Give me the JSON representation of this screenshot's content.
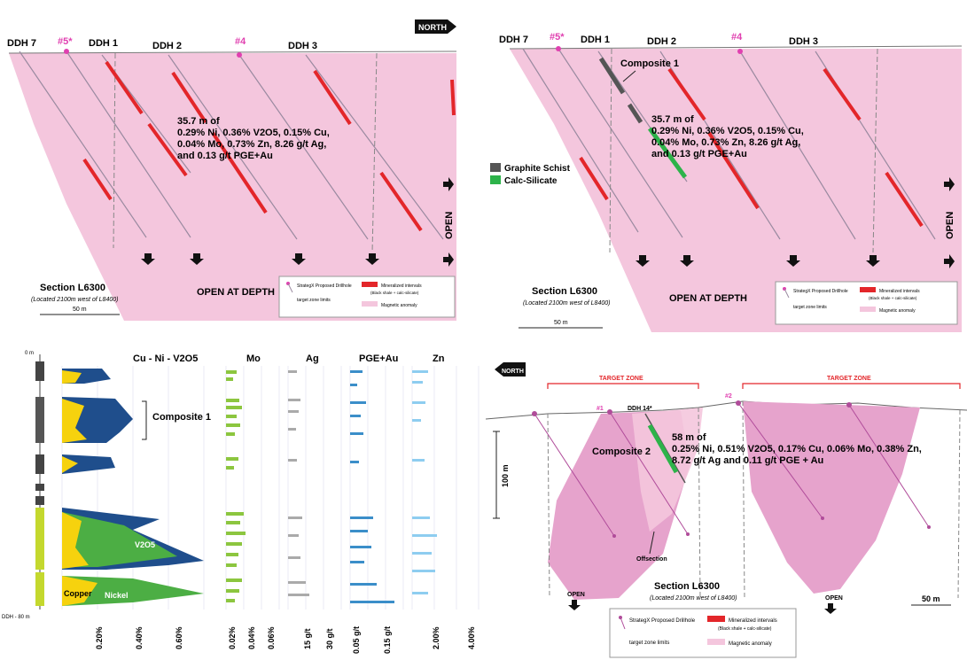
{
  "colors": {
    "pink": "#f4c6dd",
    "pink_strong": "#e6a3cc",
    "magenta": "#e040b0",
    "red": "#e3262a",
    "graphite": "#555555",
    "calc": "#2db34a",
    "yellow": "#f6d20e",
    "blue": "#1f4e8c",
    "green": "#4cae44",
    "mo_green": "#8cc63f",
    "ag_grey": "#aaaaaa",
    "pge_blue": "#3b8ec9",
    "zn_lightblue": "#8ecdf0"
  },
  "north_label": "NORTH",
  "top_left": {
    "holes": [
      "DDH 7",
      "#5*",
      "DDH 1",
      "DDH 2",
      "#4",
      "DDH 3"
    ],
    "intercept": [
      "35.7 m of",
      "0.29% Ni, 0.36% V2O5, 0.15% Cu,",
      "0.04% Mo, 0.73% Zn, 8.26 g/t Ag,",
      "and 0.13 g/t PGE+Au"
    ],
    "open_label": "OPEN",
    "open_at_depth": "OPEN AT DEPTH",
    "section_title": "Section L6300",
    "section_sub": "(Located 2100m west of L8400)",
    "scale": "50 m",
    "legend": {
      "proposed": "StrategX Proposed Drillhole",
      "target_limits": "target zone limits",
      "mineralized": "Mineralized intervals",
      "mineralized_sub": "(Black shale + calc-silicate)",
      "magnetic": "Magnetic anomaly"
    }
  },
  "top_right": {
    "holes": [
      "DDH 7",
      "#5*",
      "DDH 1",
      "DDH 2",
      "#4",
      "DDH 3"
    ],
    "composite": "Composite 1",
    "intercept": [
      "35.7 m of",
      "0.29% Ni, 0.36% V2O5, 0.15% Cu,",
      "0.04% Mo, 0.73% Zn, 8.26 g/t Ag,",
      "and 0.13 g/t PGE+Au"
    ],
    "lithology": [
      "Graphite Schist",
      "Calc-Silicate"
    ],
    "open_label": "OPEN",
    "open_at_depth": "OPEN AT DEPTH",
    "section_title": "Section L6300",
    "section_sub": "(Located 2100m west of L8400)",
    "scale": "50 m",
    "legend": {
      "proposed": "StrategX Proposed Drillhole",
      "target_limits": "target zone limits",
      "mineralized": "Mineralized intervals",
      "mineralized_sub": "(Black shale + calc-silicate)",
      "magnetic": "Magnetic anomaly"
    }
  },
  "bottom_left": {
    "main_title": "Cu - Ni - V2O5",
    "composite": "Composite 1",
    "v2o5_label": "V2O5",
    "copper_label": "Copper",
    "nickel_label": "Nickel",
    "depth_top": "0 m",
    "depth_bottom": "DDH - 80 m",
    "col_titles": [
      "Mo",
      "Ag",
      "PGE+Au",
      "Zn"
    ],
    "main_ticks": [
      "0.20%",
      "0.40%",
      "0.60%"
    ],
    "mo_ticks": [
      "0.02%",
      "0.04%",
      "0.06%"
    ],
    "ag_ticks": [
      "15 g/t",
      "30 g/t"
    ],
    "pge_ticks": [
      "0.05 g/t",
      "0.15 g/t"
    ],
    "zn_ticks": [
      "2.00%",
      "4.00%"
    ]
  },
  "bottom_right": {
    "target_zone": "TARGET ZONE",
    "hole_labels": [
      "#1",
      "DDH 14*",
      "#2"
    ],
    "intercept": [
      "58 m of",
      "0.25% Ni, 0.51% V2O5,  0.17% Cu, 0.06% Mo,  0.38% Zn,",
      "8.72 g/t Ag and 0.11 g/t PGE + Au"
    ],
    "composite": "Composite 2",
    "scale_v": "100 m",
    "offsection": "Offsection",
    "open_label": "OPEN",
    "section_title": "Section L6300",
    "section_sub": "(Located 2100m west of L8400)",
    "scale": "50 m",
    "legend": {
      "proposed": "StrategX Proposed Drillhole",
      "target_limits": "target zone limits",
      "mineralized": "Mineralized intervals",
      "mineralized_sub": "(Black shale + calc-silicate)",
      "magnetic": "Magnetic anomaly"
    }
  }
}
